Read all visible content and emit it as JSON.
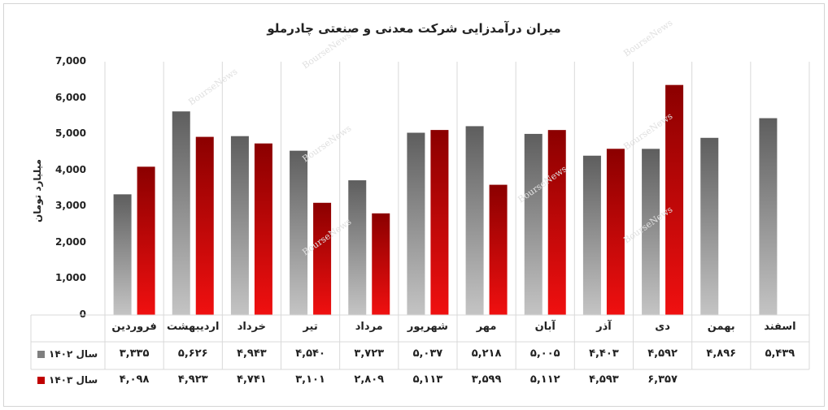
{
  "chart_data": {
    "type": "bar",
    "title": "میران درآمدزایی شرکت معدنی و صنعتی چادرملو",
    "ylabel": "میلیارد تومان",
    "xlabel": "",
    "ylim": [
      0,
      7000
    ],
    "yticks": [
      0,
      1000,
      2000,
      3000,
      4000,
      5000,
      6000,
      7000
    ],
    "ytick_labels": [
      "0",
      "1,000",
      "2,000",
      "3,000",
      "4,000",
      "5,000",
      "6,000",
      "7,000"
    ],
    "grid": "vertical-category-separators",
    "legend": "data-table-left",
    "categories": [
      "فروردین",
      "اردیبهشت",
      "خرداد",
      "تیر",
      "مرداد",
      "شهریور",
      "مهر",
      "آبان",
      "آذر",
      "دی",
      "بهمن",
      "اسفند"
    ],
    "series": [
      {
        "name": "سال ۱۴۰۲",
        "color": "#7f7f7f",
        "values": [
          3335,
          5626,
          4943,
          4540,
          3723,
          5037,
          5218,
          5005,
          4403,
          4592,
          4896,
          5439
        ],
        "value_labels": [
          "۳,۳۳۵",
          "۵,۶۲۶",
          "۴,۹۴۳",
          "۴,۵۴۰",
          "۳,۷۲۳",
          "۵,۰۳۷",
          "۵,۲۱۸",
          "۵,۰۰۵",
          "۴,۴۰۳",
          "۴,۵۹۲",
          "۴,۸۹۶",
          "۵,۴۳۹"
        ]
      },
      {
        "name": "سال ۱۴۰۳",
        "color": "#c00000",
        "values": [
          4098,
          4923,
          4741,
          3101,
          2809,
          5113,
          3599,
          5112,
          4593,
          6357,
          null,
          null
        ],
        "value_labels": [
          "۴,۰۹۸",
          "۴,۹۲۳",
          "۴,۷۴۱",
          "۳,۱۰۱",
          "۲,۸۰۹",
          "۵,۱۱۳",
          "۳,۵۹۹",
          "۵,۱۱۲",
          "۴,۵۹۳",
          "۶,۳۵۷",
          "",
          ""
        ]
      }
    ]
  },
  "watermark": "BourseNews"
}
